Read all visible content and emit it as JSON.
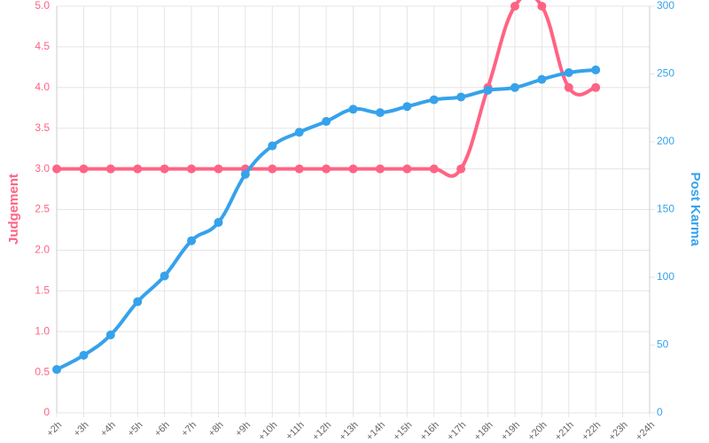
{
  "chart_data": {
    "type": "line",
    "categories": [
      "+2h",
      "+3h",
      "+4h",
      "+5h",
      "+6h",
      "+7h",
      "+8h",
      "+9h",
      "+10h",
      "+11h",
      "+12h",
      "+13h",
      "+14h",
      "+15h",
      "+16h",
      "+17h",
      "+18h",
      "+19h",
      "+20h",
      "+21h",
      "+22h",
      "+23h",
      "+24h"
    ],
    "series": [
      {
        "name": "Judgement",
        "color": "#ff6384",
        "values": [
          3,
          3,
          3,
          3,
          3,
          3,
          3,
          3,
          3,
          3,
          3,
          3,
          3,
          3,
          3,
          3,
          4,
          5,
          5,
          4,
          4,
          null,
          null
        ]
      },
      {
        "name": "Post Karma",
        "color": "#36a2eb",
        "axis": "y2",
        "values": [
          32,
          42.5,
          57.5,
          82,
          101,
          127,
          140.5,
          176,
          197,
          207,
          215,
          224,
          221.5,
          226,
          231,
          233,
          238,
          240,
          246,
          251,
          253,
          null,
          null
        ]
      }
    ],
    "ylabel": "Judgement",
    "y2label": "Post Karma",
    "ylim": [
      0,
      5
    ],
    "yticks": [
      0,
      0.5,
      {
        "value": 1,
        "label": "1.0"
      },
      1.5,
      {
        "value": 2,
        "label": "2.0"
      },
      2.5,
      {
        "value": 3,
        "label": "3.0"
      },
      3.5,
      {
        "value": 4,
        "label": "4.0"
      },
      4.5,
      {
        "value": 5,
        "label": "5.0"
      }
    ],
    "y2lim": [
      0,
      300
    ],
    "y2ticks": [
      0,
      50,
      100,
      150,
      200,
      250,
      300
    ],
    "grid": true
  }
}
